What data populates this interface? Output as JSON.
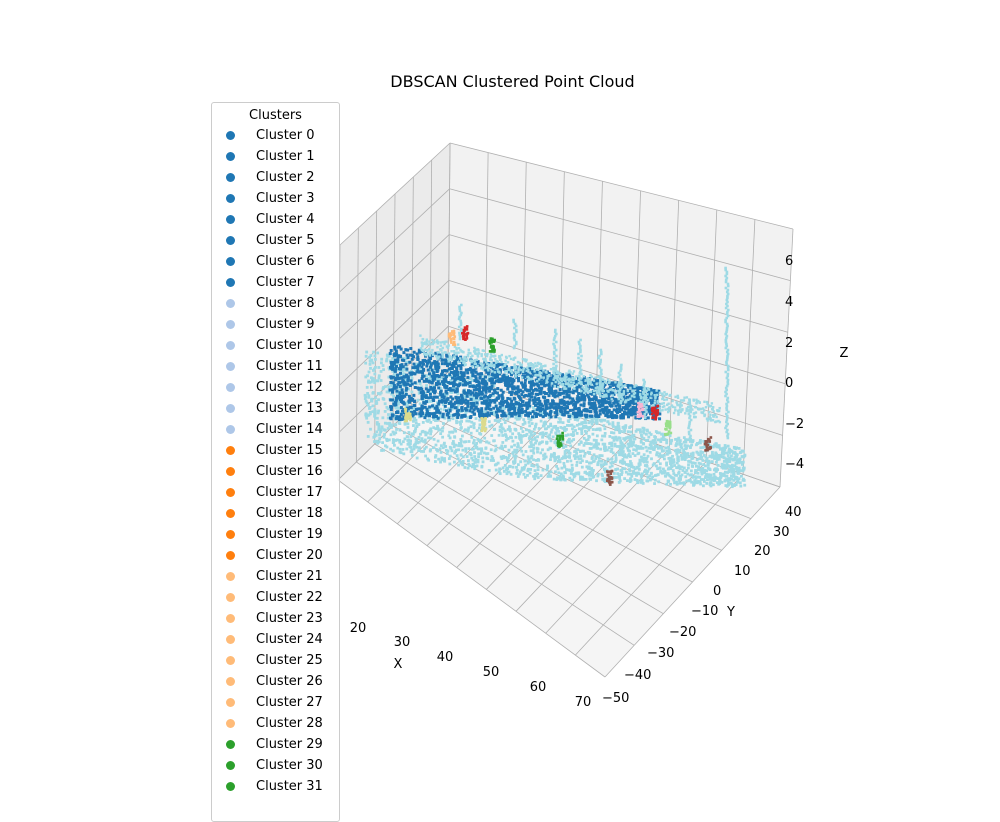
{
  "chart_data": {
    "type": "scatter",
    "title": "DBSCAN Clustered Point Cloud",
    "xlabel": "X",
    "ylabel": "Y",
    "zlabel": "Z",
    "xticks": [
      "20",
      "30",
      "40",
      "50",
      "60",
      "70"
    ],
    "yticks": [
      "−50",
      "−40",
      "−30",
      "−20",
      "−10",
      "0",
      "10",
      "20",
      "30",
      "40"
    ],
    "zticks": [
      "−4",
      "−2",
      "0",
      "2",
      "4",
      "6"
    ],
    "grid": true,
    "legend": {
      "title": "Clusters",
      "placement": "left",
      "entries": [
        {
          "label": "Cluster 0",
          "color": "#1f77b4"
        },
        {
          "label": "Cluster 1",
          "color": "#1f77b4"
        },
        {
          "label": "Cluster 2",
          "color": "#1f77b4"
        },
        {
          "label": "Cluster 3",
          "color": "#1f77b4"
        },
        {
          "label": "Cluster 4",
          "color": "#1f77b4"
        },
        {
          "label": "Cluster 5",
          "color": "#1f77b4"
        },
        {
          "label": "Cluster 6",
          "color": "#1f77b4"
        },
        {
          "label": "Cluster 7",
          "color": "#1f77b4"
        },
        {
          "label": "Cluster 8",
          "color": "#aec7e8"
        },
        {
          "label": "Cluster 9",
          "color": "#aec7e8"
        },
        {
          "label": "Cluster 10",
          "color": "#aec7e8"
        },
        {
          "label": "Cluster 11",
          "color": "#aec7e8"
        },
        {
          "label": "Cluster 12",
          "color": "#aec7e8"
        },
        {
          "label": "Cluster 13",
          "color": "#aec7e8"
        },
        {
          "label": "Cluster 14",
          "color": "#aec7e8"
        },
        {
          "label": "Cluster 15",
          "color": "#ff7f0e"
        },
        {
          "label": "Cluster 16",
          "color": "#ff7f0e"
        },
        {
          "label": "Cluster 17",
          "color": "#ff7f0e"
        },
        {
          "label": "Cluster 18",
          "color": "#ff7f0e"
        },
        {
          "label": "Cluster 19",
          "color": "#ff7f0e"
        },
        {
          "label": "Cluster 20",
          "color": "#ff7f0e"
        },
        {
          "label": "Cluster 21",
          "color": "#ffbb78"
        },
        {
          "label": "Cluster 22",
          "color": "#ffbb78"
        },
        {
          "label": "Cluster 23",
          "color": "#ffbb78"
        },
        {
          "label": "Cluster 24",
          "color": "#ffbb78"
        },
        {
          "label": "Cluster 25",
          "color": "#ffbb78"
        },
        {
          "label": "Cluster 26",
          "color": "#ffbb78"
        },
        {
          "label": "Cluster 27",
          "color": "#ffbb78"
        },
        {
          "label": "Cluster 28",
          "color": "#ffbb78"
        },
        {
          "label": "Cluster 29",
          "color": "#2ca02c"
        },
        {
          "label": "Cluster 30",
          "color": "#2ca02c"
        },
        {
          "label": "Cluster 31",
          "color": "#2ca02c"
        }
      ]
    },
    "series_colors": {
      "main": "#1f77b4",
      "ground": "#9edae5",
      "accents": [
        "#d62728",
        "#2ca02c",
        "#98df8a",
        "#ffbb78",
        "#dbdb8d",
        "#f7b6d2",
        "#8c564b",
        "#ff7f0e",
        "#9467bd"
      ]
    }
  }
}
